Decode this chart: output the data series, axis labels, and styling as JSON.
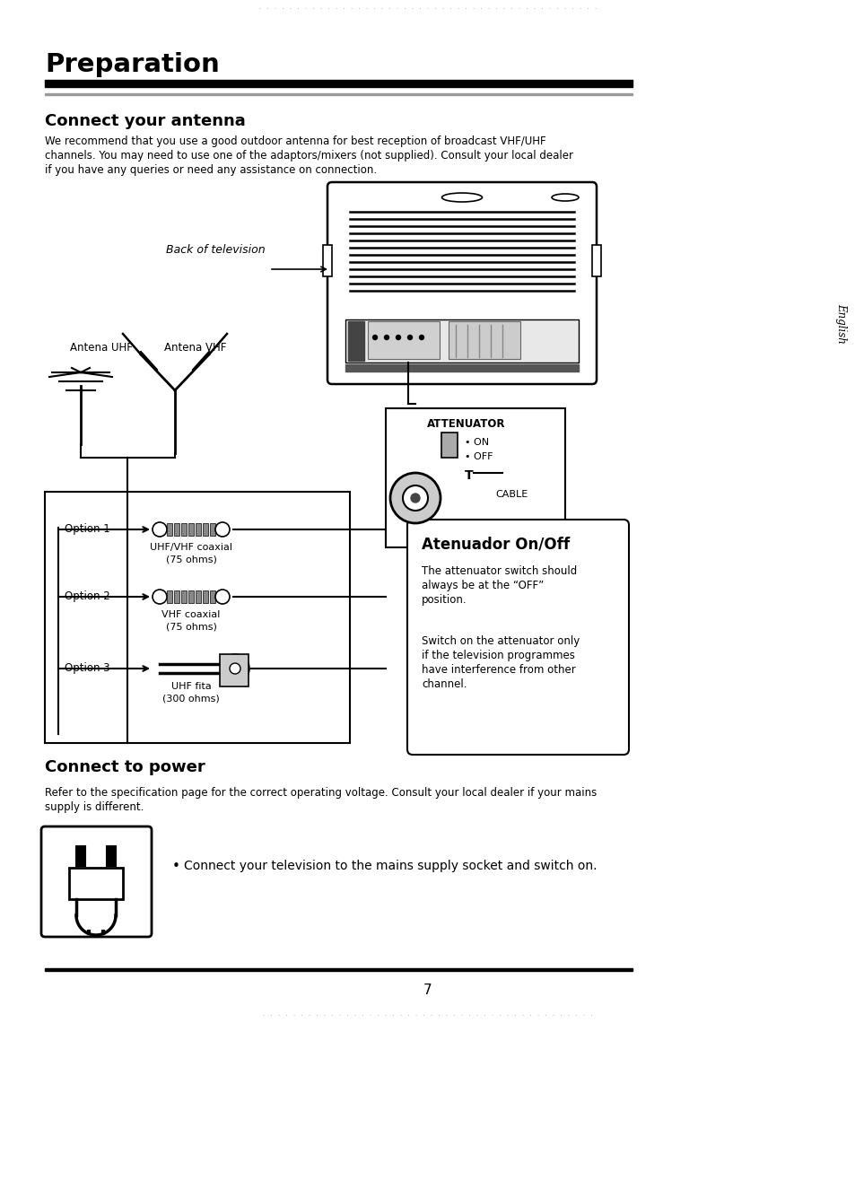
{
  "bg_color": "#ffffff",
  "page_title": "Preparation",
  "section1_title": "Connect your antenna",
  "section1_text_l1": "We recommend that you use a good outdoor antenna for best reception of broadcast VHF/UHF",
  "section1_text_l2": "channels. You may need to use one of the adaptors/mixers (not supplied). Consult your local dealer",
  "section1_text_l3": "if you have any queries or need any assistance on connection.",
  "back_of_tv_label": "Back of television",
  "antena_uhf_label": "Antena UHF",
  "antena_vhf_label": "Antena VHF",
  "option1_label": "Option 1",
  "option2_label": "Option 2",
  "option3_label": "Option 3",
  "option1_line1": "UHF/VHF coaxial",
  "option1_line2": "(75 ohms)",
  "option2_line1": "VHF coaxial",
  "option2_line2": "(75 ohms)",
  "option3_line1": "UHF fita",
  "option3_line2": "(300 ohms)",
  "attenuator_title": "ATTENUATOR",
  "attenuator_on": "• ON",
  "attenuator_off": "• OFF",
  "attenuator_cable": "CABLE",
  "info_box_title": "Atenuador On/Off",
  "info_box_t1_l1": "The attenuator switch should",
  "info_box_t1_l2": "always be at the “OFF”",
  "info_box_t1_l3": "position.",
  "info_box_t2_l1": "Switch on the attenuator only",
  "info_box_t2_l2": "if the television programmes",
  "info_box_t2_l3": "have interference from other",
  "info_box_t2_l4": "channel.",
  "section2_title": "Connect to power",
  "section2_text_l1": "Refer to the specification page for the correct operating voltage. Consult your local dealer if your mains",
  "section2_text_l2": "supply is different.",
  "power_bullet": "Connect your television to the mains supply socket and switch on.",
  "english_label": "English",
  "page_number": "7"
}
